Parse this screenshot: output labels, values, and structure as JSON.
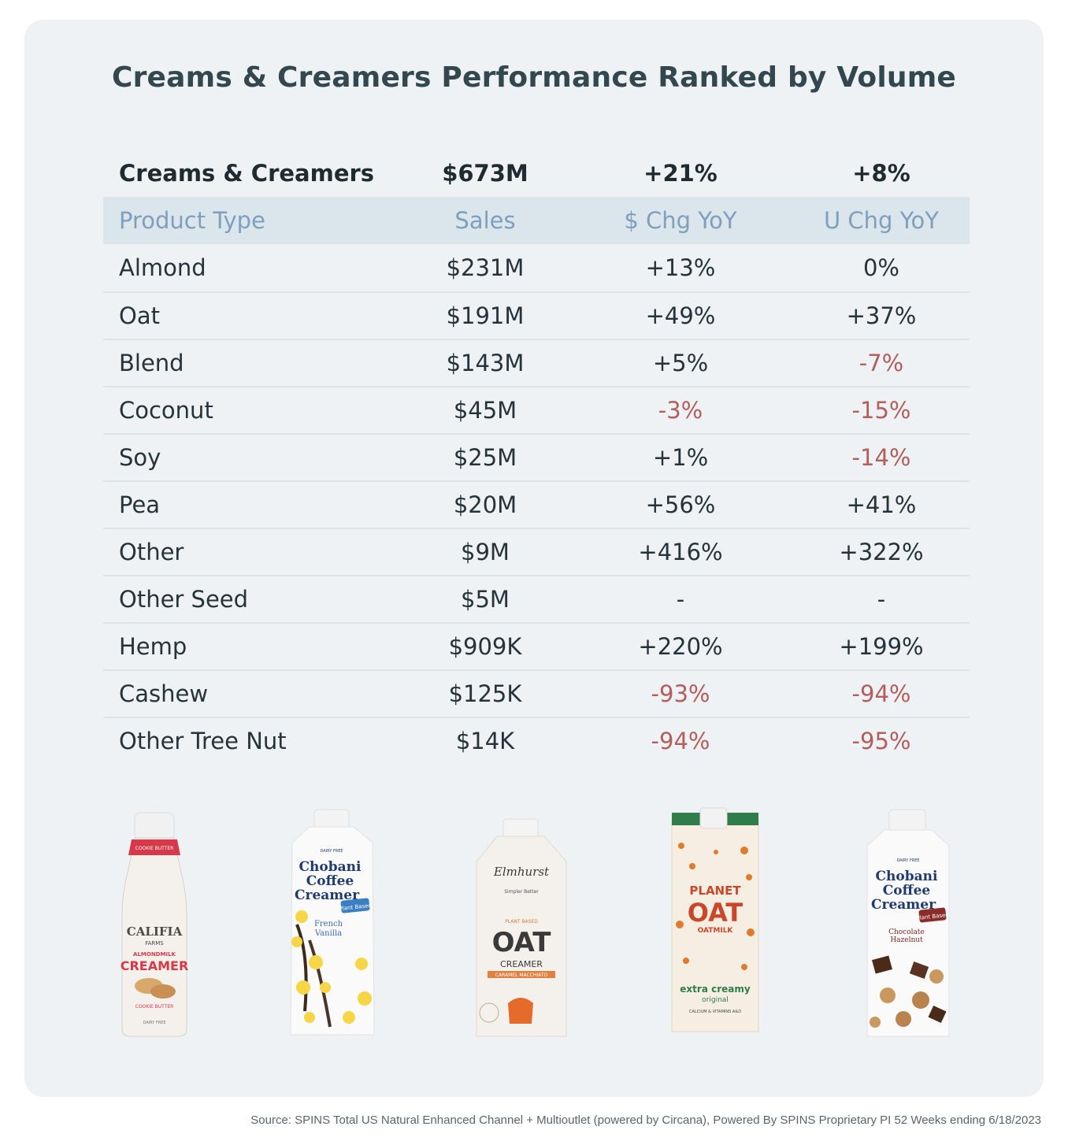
{
  "title": "Creams & Creamers Performance Ranked by Volume",
  "source": "Source: SPINS Total US Natural Enhanced Channel + Multioutlet (powered by Circana), Powered By SPINS Proprietary PI 52 Weeks ending 6/18/2023",
  "colors": {
    "positive": "#26333a",
    "negative": "#b35e5c",
    "header": "#7f9fbd",
    "header_bg": "#dbe5ec",
    "card_bg": "#eef2f4"
  },
  "chart_data": {
    "type": "table",
    "total": {
      "label": "Creams & Creamers",
      "sales": "$673M",
      "dollar_chg": "+21%",
      "unit_chg": "+8%"
    },
    "columns": [
      "Product Type",
      "Sales",
      "$ Chg YoY",
      "U Chg YoY"
    ],
    "rows": [
      {
        "type": "Almond",
        "sales": "$231M",
        "dollar_chg": "+13%",
        "unit_chg": "0%"
      },
      {
        "type": "Oat",
        "sales": "$191M",
        "dollar_chg": "+49%",
        "unit_chg": "+37%"
      },
      {
        "type": "Blend",
        "sales": "$143M",
        "dollar_chg": "+5%",
        "unit_chg": "-7%"
      },
      {
        "type": "Coconut",
        "sales": "$45M",
        "dollar_chg": "-3%",
        "unit_chg": "-15%"
      },
      {
        "type": "Soy",
        "sales": "$25M",
        "dollar_chg": "+1%",
        "unit_chg": "-14%"
      },
      {
        "type": "Pea",
        "sales": "$20M",
        "dollar_chg": "+56%",
        "unit_chg": "+41%"
      },
      {
        "type": "Other",
        "sales": "$9M",
        "dollar_chg": "+416%",
        "unit_chg": "+322%"
      },
      {
        "type": "Other Seed",
        "sales": "$5M",
        "dollar_chg": "-",
        "unit_chg": "-"
      },
      {
        "type": "Hemp",
        "sales": "$909K",
        "dollar_chg": "+220%",
        "unit_chg": "+199%"
      },
      {
        "type": "Cashew",
        "sales": "$125K",
        "dollar_chg": "-93%",
        "unit_chg": "-94%"
      },
      {
        "type": "Other Tree Nut",
        "sales": "$14K",
        "dollar_chg": "-94%",
        "unit_chg": "-95%"
      }
    ]
  },
  "products": [
    {
      "brand": "CALIFIA",
      "sub": "FARMS",
      "line1": "ALMONDMILK",
      "line2": "CREAMER",
      "band": "COOKIE BUTTER",
      "flavor": "COOKIE BUTTER"
    },
    {
      "brand": "Chobani",
      "line1": "Coffee",
      "line2": "Creamer",
      "badge": "Plant Based",
      "flavor": "French Vanilla"
    },
    {
      "brand": "Elmhurst",
      "tag": "Simpler Better",
      "line1": "OAT",
      "line2": "CREAMER",
      "band": "CARAMEL MACCHIATO"
    },
    {
      "brand": "PLANET",
      "line1": "OAT",
      "line2": "OATMILK",
      "flavor": "extra creamy",
      "sub": "original"
    },
    {
      "brand": "Chobani",
      "line1": "Coffee",
      "line2": "Creamer",
      "badge": "Plant Based",
      "flavor": "Chocolate Hazelnut"
    }
  ]
}
